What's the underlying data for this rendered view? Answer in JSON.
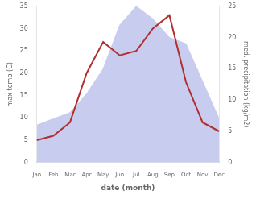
{
  "chart_data": {
    "type": "line",
    "xlabel": "date (month)",
    "ylabel": "max temp (C)",
    "y2label": "med. precipitation (kg/m2)",
    "categories": [
      "Jan",
      "Feb",
      "Mar",
      "Apr",
      "May",
      "Jun",
      "Jul",
      "Aug",
      "Sep",
      "Oct",
      "Nov",
      "Dec"
    ],
    "series": [
      {
        "type": "area",
        "color": "#c8ccee",
        "axis": "y2",
        "values": [
          6,
          7,
          8,
          11,
          15,
          22,
          25,
          23,
          20,
          19,
          13,
          7
        ]
      },
      {
        "type": "line",
        "color": "#b03030",
        "values": [
          5,
          6,
          9,
          20,
          27,
          24,
          25,
          30,
          33,
          18,
          9,
          7
        ]
      }
    ],
    "ylim": [
      0,
      35
    ],
    "yticks": [
      0,
      5,
      10,
      15,
      20,
      25,
      30,
      35
    ],
    "y2lim": [
      0,
      25
    ],
    "y2ticks": [
      0,
      5,
      10,
      15,
      20,
      25
    ],
    "grid": false
  }
}
